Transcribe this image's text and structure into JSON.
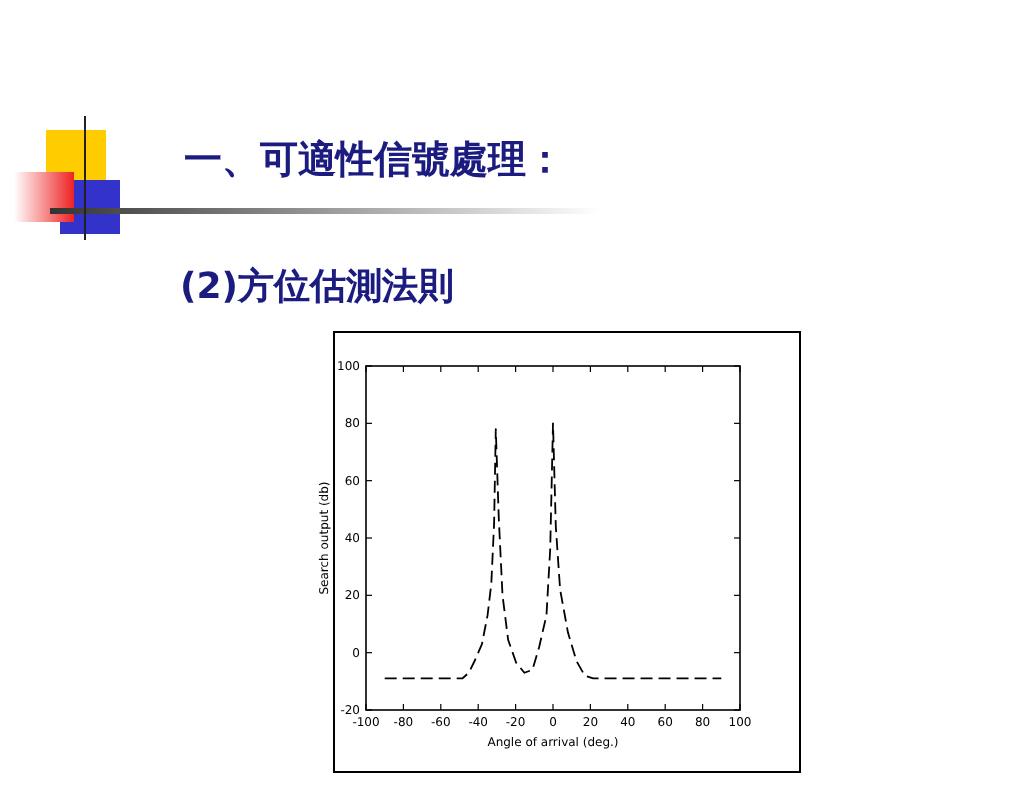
{
  "chart_data": {
    "type": "line",
    "title": "一、可適性信號處理：",
    "subtitle": "(2)方位估測法則",
    "xlabel": "Angle of arrival (deg.)",
    "ylabel": "Search output (db)",
    "x": [
      -90,
      -48.5,
      -45,
      -42,
      -38,
      -35,
      -33,
      -31.5,
      -30.6,
      -29,
      -27,
      -24,
      -19.7,
      -15.3,
      -11,
      -7.4,
      -3.5,
      -1.5,
      0,
      1.5,
      3.8,
      8,
      12.6,
      17,
      21.5,
      90
    ],
    "series": [
      {
        "color": "#000000",
        "values": [
          -9,
          -9,
          -7,
          -3,
          3,
          13,
          24,
          45,
          78,
          47,
          20,
          4.5,
          -3.5,
          -7,
          -6,
          2,
          13,
          36,
          80,
          44,
          22,
          7,
          -3,
          -8,
          -9,
          -9
        ]
      }
    ],
    "xlim": [
      -100,
      100
    ],
    "ylim": [
      -20,
      100
    ],
    "xticks": [
      -100,
      -80,
      -60,
      -40,
      -20,
      0,
      20,
      40,
      60,
      80,
      100
    ],
    "yticks": [
      -20,
      0,
      20,
      40,
      60,
      80,
      100
    ],
    "grid": false,
    "marker": "none",
    "line_style": "dashed"
  }
}
